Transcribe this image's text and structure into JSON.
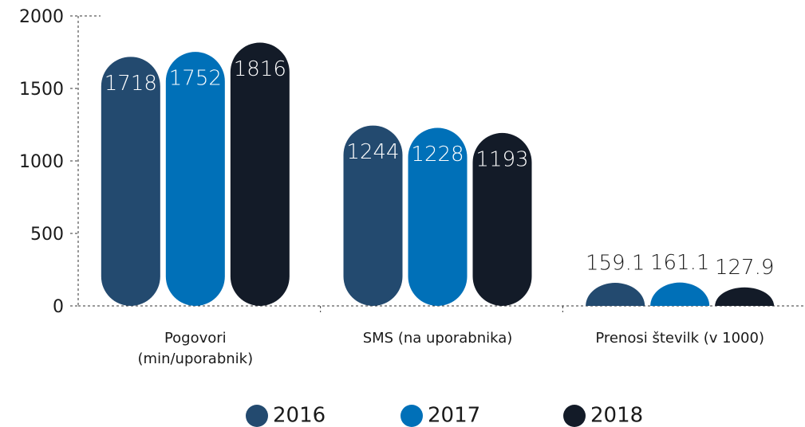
{
  "chart_data": {
    "type": "bar",
    "categories": [
      "Pogovori\n(min/uporabnik)",
      "SMS (na uporabnika)",
      "Prenosi številk (v 1000)"
    ],
    "series": [
      {
        "name": "2016",
        "color": "#234a6f",
        "values": [
          1718,
          1244,
          159.1
        ]
      },
      {
        "name": "2017",
        "color": "#0070b8",
        "values": [
          1752,
          1228,
          161.1
        ]
      },
      {
        "name": "2018",
        "color": "#131b28",
        "values": [
          1816,
          1193,
          127.9
        ]
      }
    ],
    "ylim": [
      0,
      2000
    ],
    "yticks": [
      0,
      500,
      1000,
      1500,
      2000
    ]
  }
}
